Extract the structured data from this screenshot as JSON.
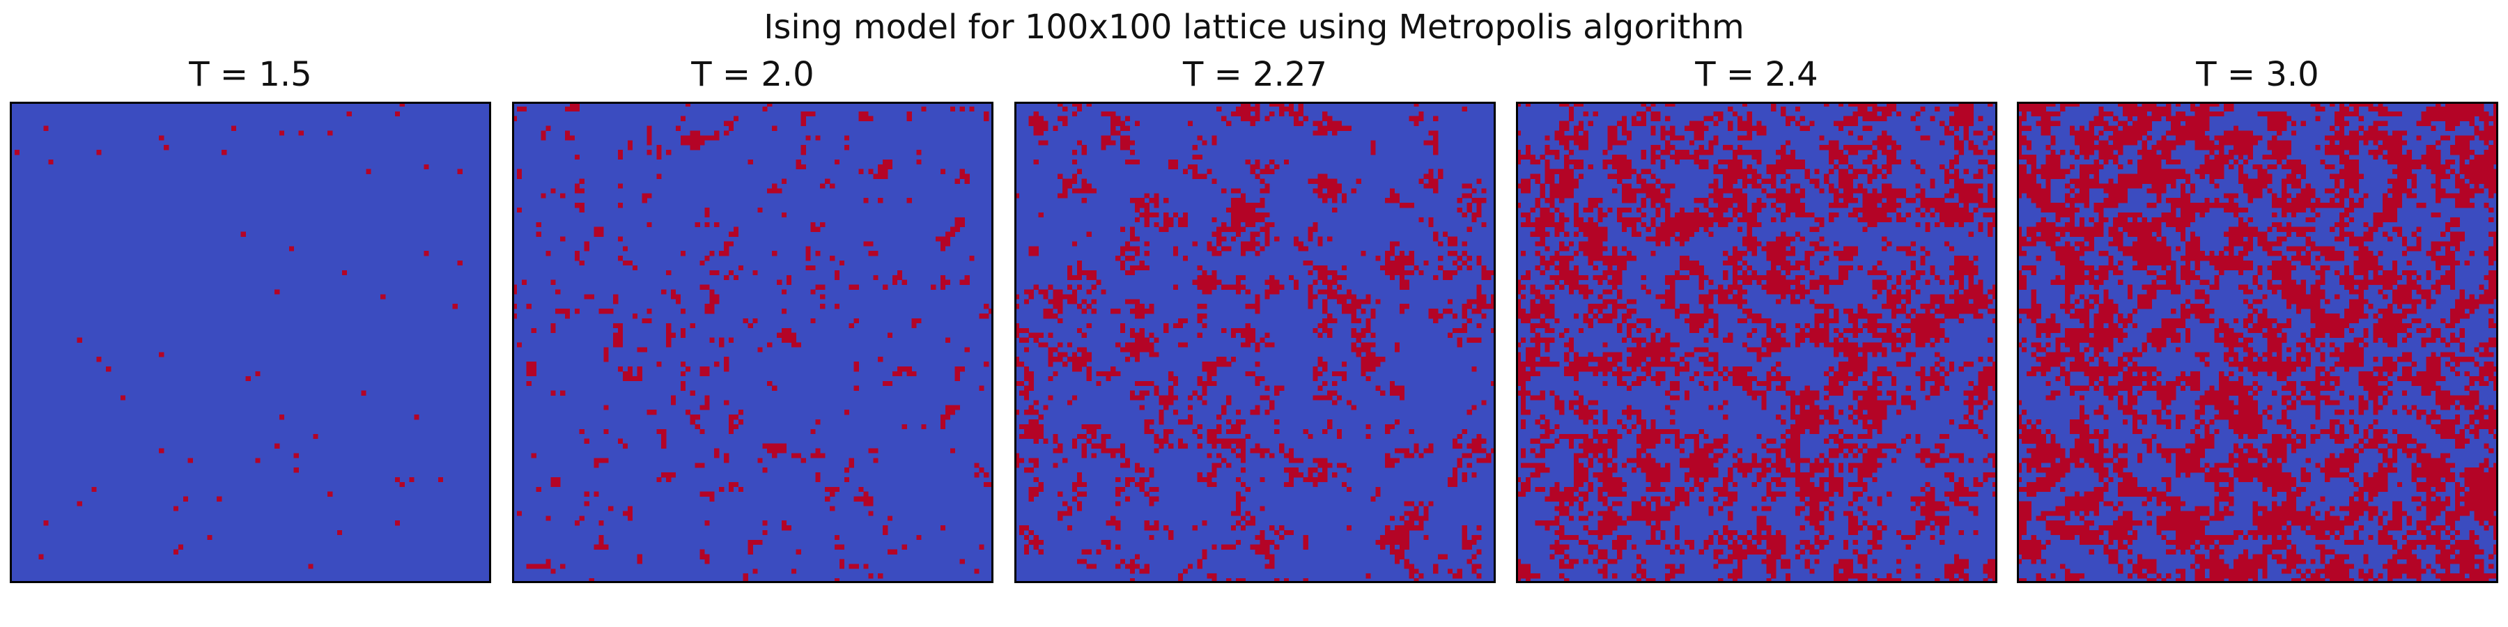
{
  "suptitle": "Ising model for 100x100 lattice using Metropolis algorithm",
  "chart_data": {
    "type": "heatmap",
    "lattice_size": [
      100,
      100
    ],
    "spin_colors": {
      "down": "#3b4cc0",
      "up": "#b40426"
    },
    "frame_color": "#000000",
    "axes_visible": false,
    "panels": [
      {
        "title": "T = 1.5",
        "temperature": 1.5,
        "up_fraction": 0.006,
        "cluster_scale": 0.0
      },
      {
        "title": "T = 2.0",
        "temperature": 2.0,
        "up_fraction": 0.06,
        "cluster_scale": 0.4
      },
      {
        "title": "T = 2.27",
        "temperature": 2.27,
        "up_fraction": 0.16,
        "cluster_scale": 0.9
      },
      {
        "title": "T = 2.4",
        "temperature": 2.4,
        "up_fraction": 0.36,
        "cluster_scale": 1.0
      },
      {
        "title": "T = 3.0",
        "temperature": 3.0,
        "up_fraction": 0.47,
        "cluster_scale": 0.6
      }
    ]
  }
}
